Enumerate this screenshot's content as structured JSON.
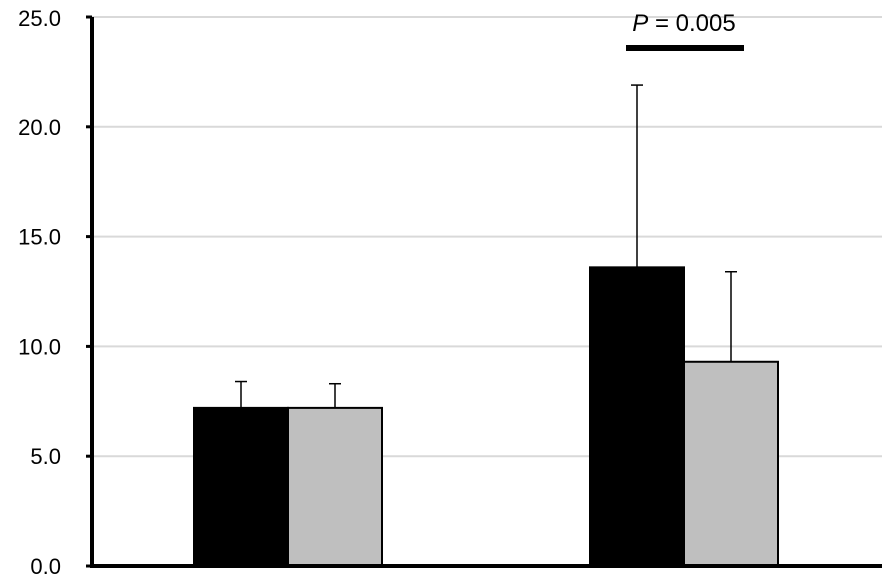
{
  "chart_data": {
    "type": "bar",
    "categories": [
      "",
      ""
    ],
    "series": [
      {
        "values": [
          7.2,
          13.6
        ],
        "errors": [
          1.2,
          8.3
        ],
        "color": "#000000"
      },
      {
        "values": [
          7.2,
          9.3
        ],
        "errors": [
          1.1,
          4.1
        ],
        "color": "#bfbfbf"
      }
    ],
    "ylim": [
      0,
      25
    ],
    "yticks": [
      "0.0",
      "5.0",
      "10.0",
      "15.0",
      "20.0",
      "25.0"
    ],
    "ytick_values": [
      0,
      5,
      10,
      15,
      20,
      25
    ],
    "grid": true,
    "gridline_color": "#d9d9d9",
    "annotation": {
      "p_symbol": "P",
      "p_value": " = 0.005",
      "category_index": 1
    }
  }
}
